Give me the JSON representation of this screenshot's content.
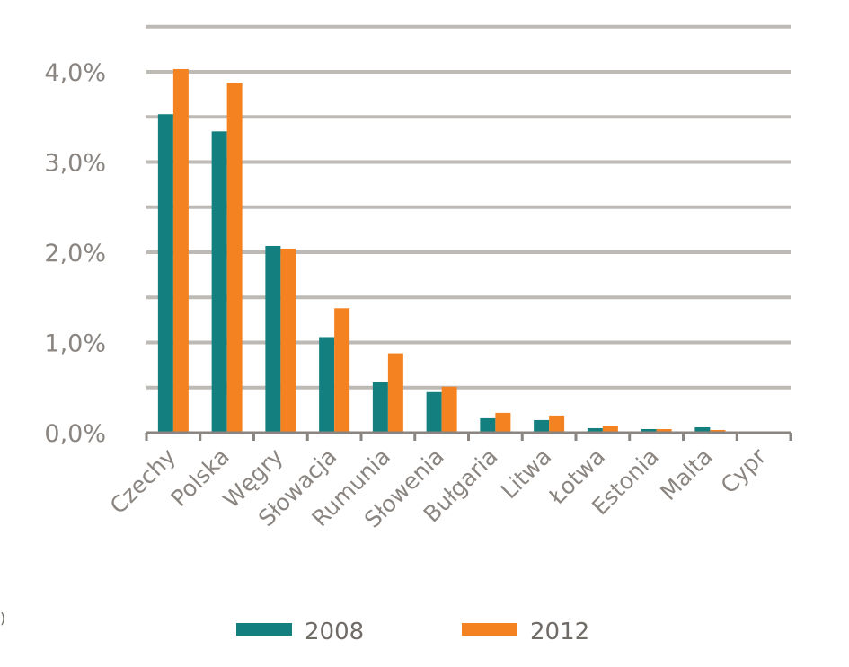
{
  "colors": {
    "series_2008": "#13807f",
    "series_2012": "#f58220",
    "grid": "#bdbab6",
    "text": "#8a8580"
  },
  "edge_mark": ")",
  "chart_data": {
    "type": "bar",
    "title": "",
    "xlabel": "",
    "ylabel": "",
    "ylim": [
      0,
      4.5
    ],
    "y_ticks": [
      {
        "value": 0,
        "label": "0,0%"
      },
      {
        "value": 1,
        "label": "1,0%"
      },
      {
        "value": 2,
        "label": "2,0%"
      },
      {
        "value": 3,
        "label": "3,0%"
      },
      {
        "value": 4,
        "label": "4,0%"
      }
    ],
    "grid": true,
    "legend_position": "bottom",
    "categories": [
      "Czechy",
      "Polska",
      "Węgry",
      "Słowacja",
      "Rumunia",
      "Słowenia",
      "Bułgaria",
      "Litwa",
      "Łotwa",
      "Estonia",
      "Malta",
      "Cypr"
    ],
    "series": [
      {
        "name": "2008",
        "color": "#13807f",
        "values": [
          3.53,
          3.34,
          2.07,
          1.06,
          0.56,
          0.45,
          0.16,
          0.14,
          0.05,
          0.04,
          0.06,
          0.01
        ]
      },
      {
        "name": "2012",
        "color": "#f58220",
        "values": [
          4.03,
          3.88,
          2.04,
          1.38,
          0.88,
          0.51,
          0.22,
          0.19,
          0.07,
          0.04,
          0.03,
          0.01
        ]
      }
    ]
  }
}
